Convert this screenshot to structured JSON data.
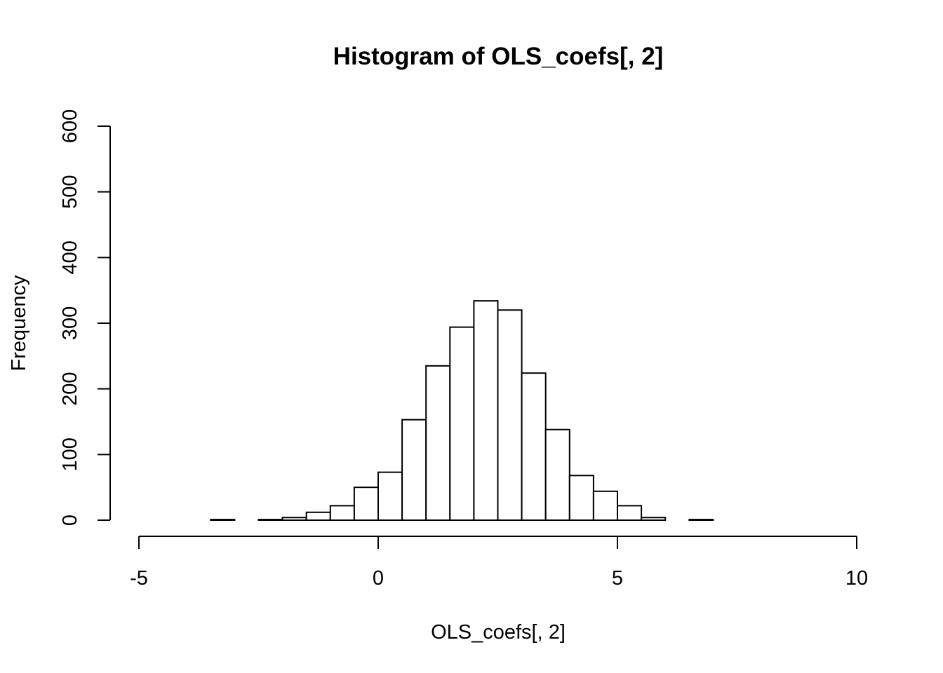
{
  "chart_data": {
    "type": "bar",
    "title": "Histogram of OLS_coefs[, 2]",
    "xlabel": "OLS_coefs[, 2]",
    "ylabel": "Frequency",
    "xlim": [
      -5,
      10
    ],
    "ylim": [
      0,
      600
    ],
    "x_ticks": [
      -5,
      0,
      5,
      10
    ],
    "y_ticks": [
      0,
      100,
      200,
      300,
      400,
      500,
      600
    ],
    "bin_width": 0.5,
    "bins": [
      {
        "start": -3.5,
        "end": -3.0,
        "count": 1
      },
      {
        "start": -3.0,
        "end": -2.5,
        "count": 0
      },
      {
        "start": -2.5,
        "end": -2.0,
        "count": 1
      },
      {
        "start": -2.0,
        "end": -1.5,
        "count": 4
      },
      {
        "start": -1.5,
        "end": -1.0,
        "count": 12
      },
      {
        "start": -1.0,
        "end": -0.5,
        "count": 22
      },
      {
        "start": -0.5,
        "end": 0.0,
        "count": 50
      },
      {
        "start": 0.0,
        "end": 0.5,
        "count": 73
      },
      {
        "start": 0.5,
        "end": 1.0,
        "count": 153
      },
      {
        "start": 1.0,
        "end": 1.5,
        "count": 235
      },
      {
        "start": 1.5,
        "end": 2.0,
        "count": 294
      },
      {
        "start": 2.0,
        "end": 2.5,
        "count": 334
      },
      {
        "start": 2.5,
        "end": 3.0,
        "count": 320
      },
      {
        "start": 3.0,
        "end": 3.5,
        "count": 224
      },
      {
        "start": 3.5,
        "end": 4.0,
        "count": 138
      },
      {
        "start": 4.0,
        "end": 4.5,
        "count": 68
      },
      {
        "start": 4.5,
        "end": 5.0,
        "count": 44
      },
      {
        "start": 5.0,
        "end": 5.5,
        "count": 22
      },
      {
        "start": 5.5,
        "end": 6.0,
        "count": 4
      },
      {
        "start": 6.0,
        "end": 6.5,
        "count": 0
      },
      {
        "start": 6.5,
        "end": 7.0,
        "count": 1
      }
    ],
    "grid": false,
    "legend": "none"
  }
}
